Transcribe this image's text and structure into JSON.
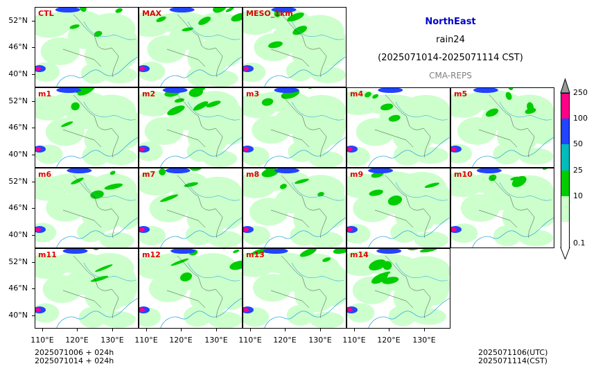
{
  "title": {
    "region": "NorthEast",
    "variable": "rain24",
    "period": "(2025071014-2025071114 CST)",
    "model": "CMA-REPS"
  },
  "colors": {
    "region": "#0000cc",
    "label": "#e00000",
    "model": "#808080"
  },
  "rows": [
    [
      "CTL",
      "MAX",
      "MESO_1km"
    ],
    [
      "m1",
      "m2",
      "m3",
      "m4",
      "m5"
    ],
    [
      "m6",
      "m7",
      "m8",
      "m9",
      "m10"
    ],
    [
      "m11",
      "m12",
      "m13",
      "m14"
    ]
  ],
  "lat_labels": [
    "52°N",
    "46°N",
    "40°N"
  ],
  "lon_labels": [
    "110°E",
    "120°E",
    "130°E"
  ],
  "colorbar": {
    "levels": [
      "0.1",
      "10",
      "25",
      "50",
      "100",
      "250"
    ],
    "colors": [
      "#ccffcc",
      "#00cc00",
      "#00bbbb",
      "#2244ff",
      "#ff0088"
    ],
    "under_color": "#ffffff",
    "over_color": "#999999"
  },
  "footer": {
    "left": [
      "2025071006  +  024h",
      "2025071014  +  024h"
    ],
    "right": [
      "2025071106(UTC)",
      "2025071114(CST)"
    ]
  }
}
